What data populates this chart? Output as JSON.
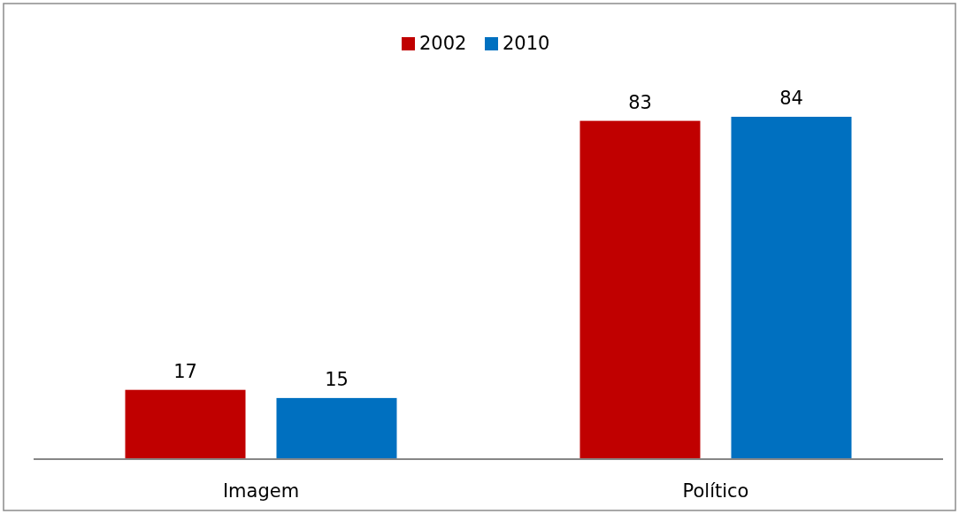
{
  "chart_data": {
    "type": "bar",
    "categories": [
      "Imagem",
      "Político"
    ],
    "series": [
      {
        "name": "2002",
        "color": "#c00000",
        "values": [
          17,
          83
        ]
      },
      {
        "name": "2010",
        "color": "#0070c0",
        "values": [
          15,
          84
        ]
      }
    ],
    "data_labels": true,
    "legend": "top"
  }
}
